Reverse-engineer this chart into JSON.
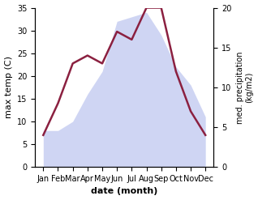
{
  "months": [
    "Jan",
    "Feb",
    "Mar",
    "Apr",
    "May",
    "Jun",
    "Jul",
    "Aug",
    "Sep",
    "Oct",
    "Nov",
    "Dec"
  ],
  "max_temp": [
    8,
    8,
    10,
    16,
    21,
    32,
    33,
    34,
    29,
    22,
    18,
    11
  ],
  "med_precip": [
    4,
    8,
    13,
    14,
    13,
    17,
    16,
    20,
    20,
    12,
    7,
    4
  ],
  "temp_fill_color": "#c0c8f0",
  "precip_line_color": "#8b2040",
  "ylabel_left": "max temp (C)",
  "ylabel_right": "med. precipitation\n(kg/m2)",
  "xlabel": "date (month)",
  "ylim_left": [
    0,
    35
  ],
  "ylim_right": [
    0,
    20
  ],
  "yticks_left": [
    0,
    5,
    10,
    15,
    20,
    25,
    30,
    35
  ],
  "yticks_right": [
    0,
    5,
    10,
    15,
    20
  ],
  "background_color": "#ffffff",
  "fill_alpha": 0.75,
  "precip_linewidth": 1.8
}
